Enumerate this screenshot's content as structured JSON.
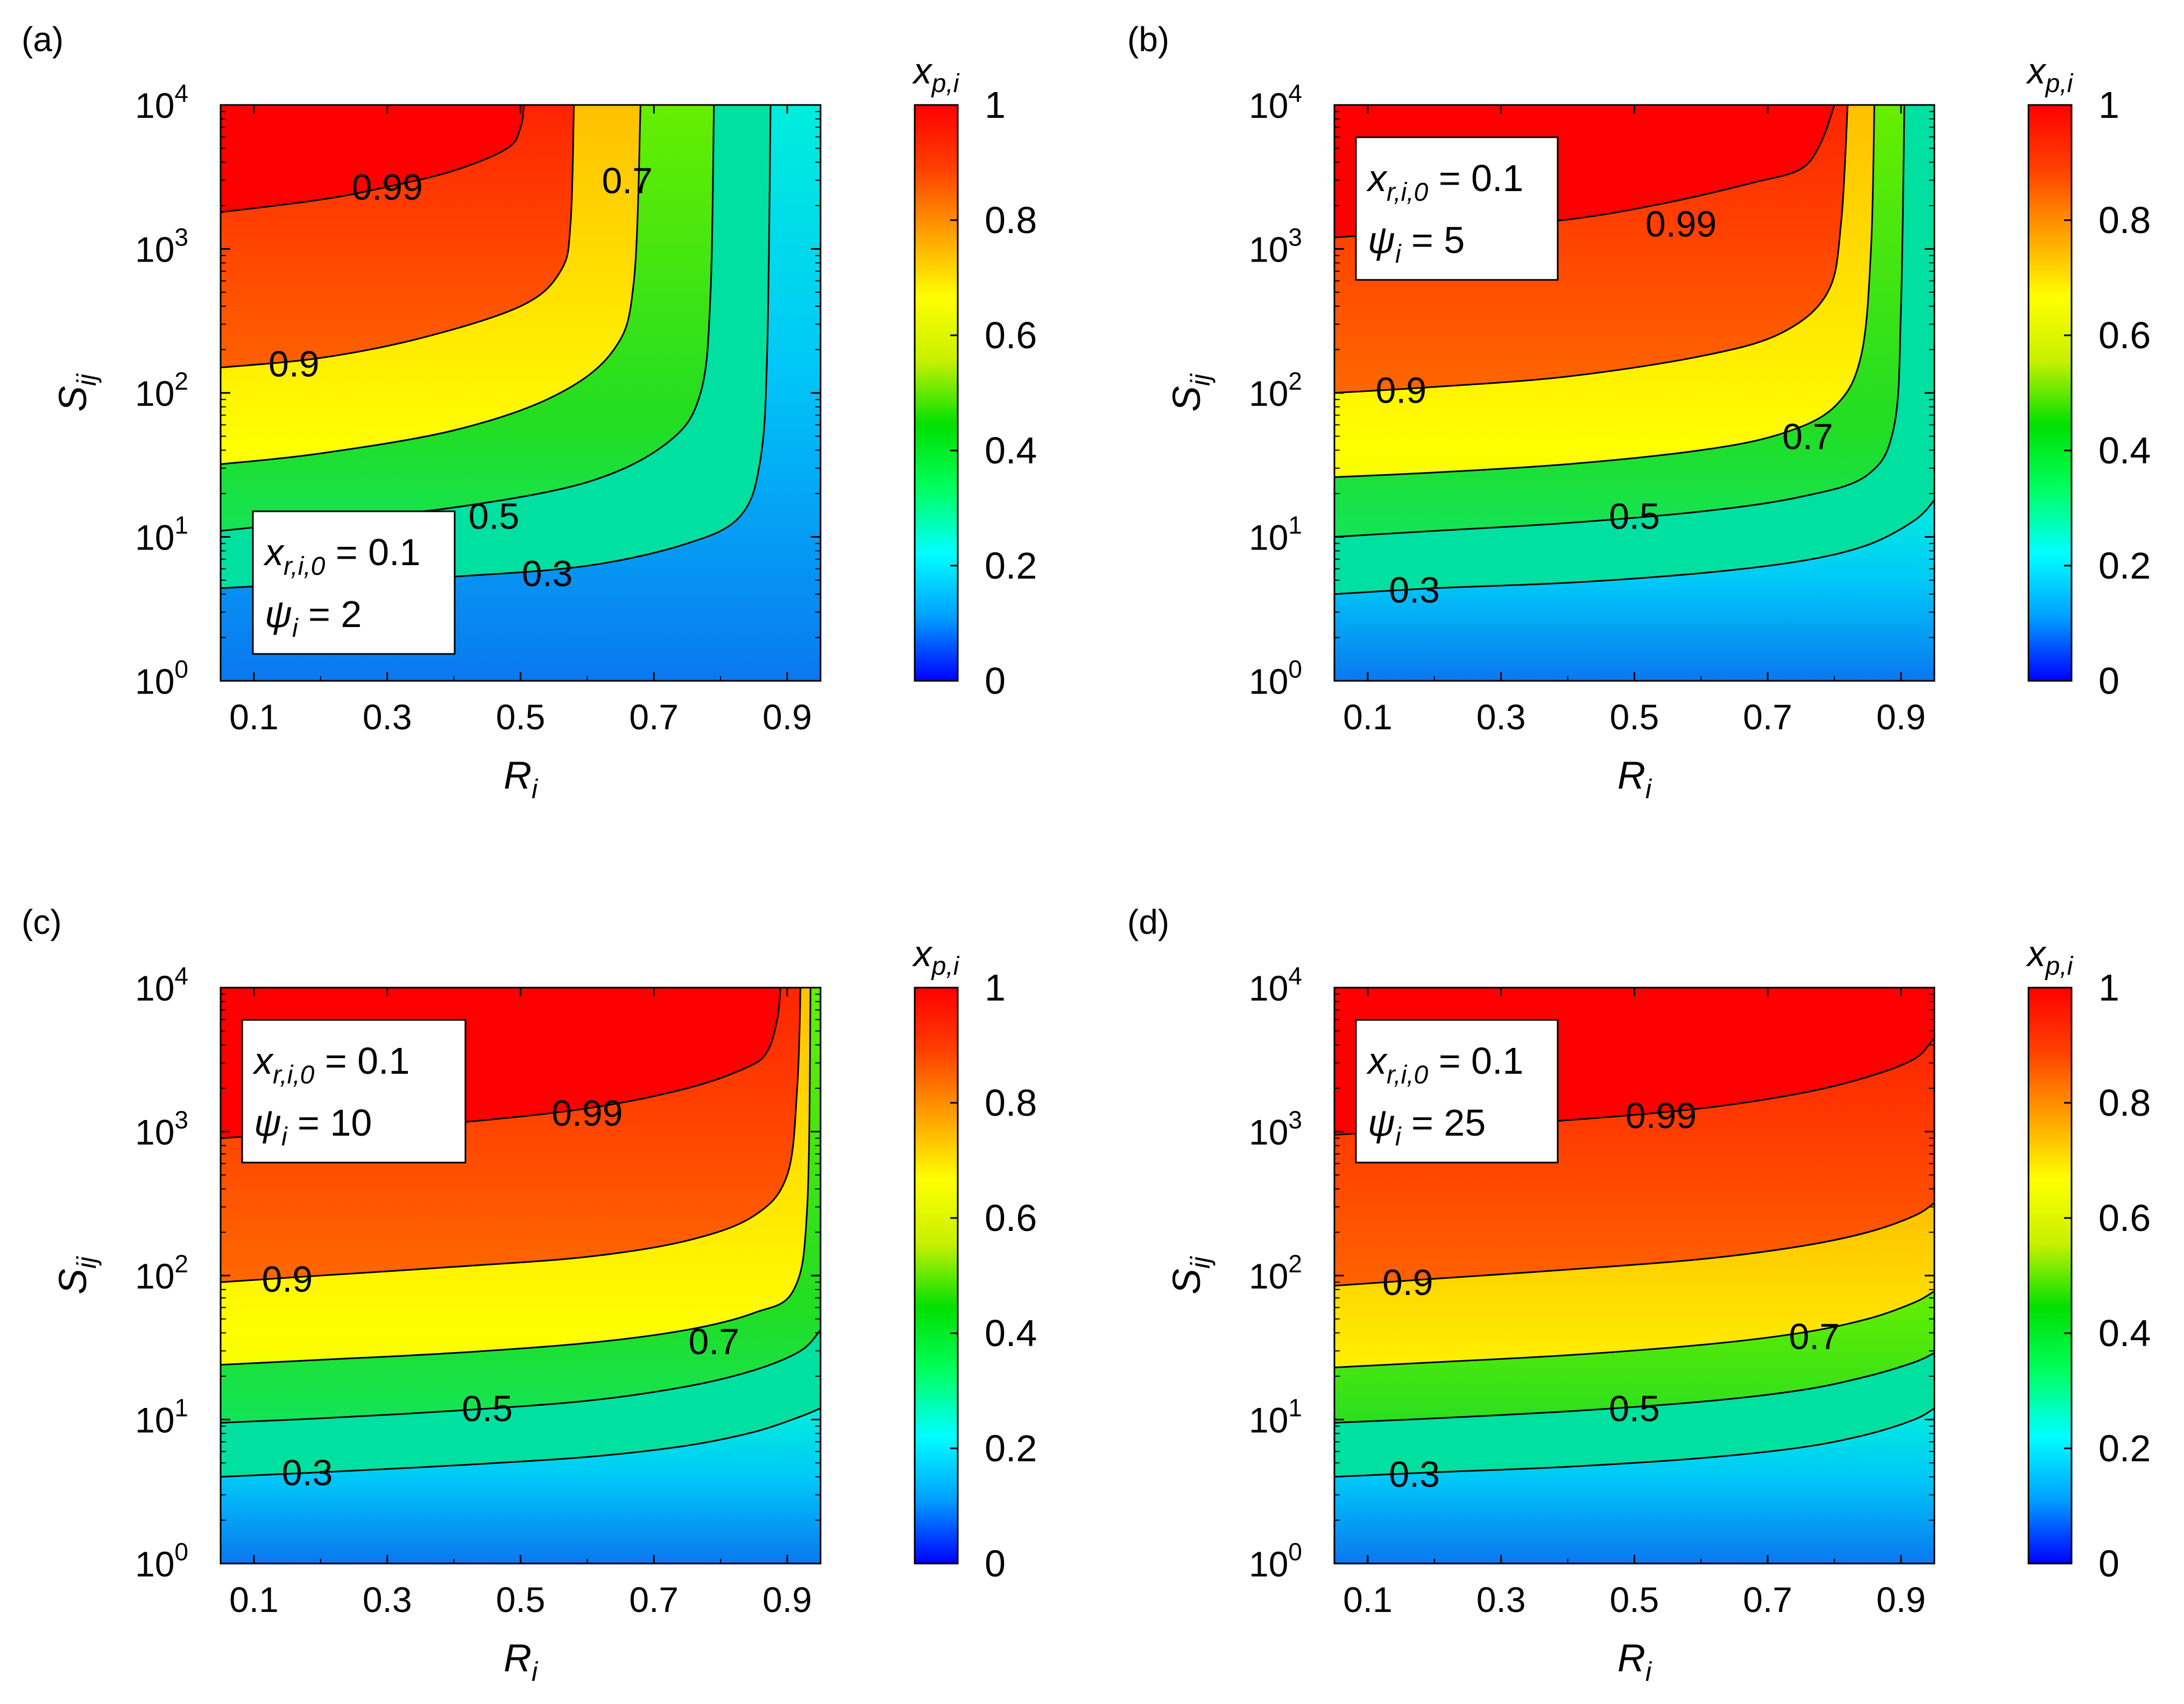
{
  "figure": {
    "background": "#ffffff"
  },
  "colorbar": {
    "title": "x",
    "title_sub": "p,i",
    "ticks": [
      "0",
      "0.2",
      "0.4",
      "0.6",
      "0.8",
      "1"
    ],
    "tick_values": [
      0,
      0.2,
      0.4,
      0.6,
      0.8,
      1
    ],
    "colormap": [
      "#0000ff",
      "#00a0ff",
      "#00ffff",
      "#00ff60",
      "#00e000",
      "#c8f000",
      "#ffff00",
      "#ffa000",
      "#ff4000",
      "#ff0000"
    ]
  },
  "chart_data": [
    {
      "panel": "(a)",
      "type": "contour",
      "xlabel": "R",
      "xlabel_sub": "i",
      "ylabel": "S",
      "ylabel_sub": "ij",
      "xlim": [
        0.05,
        0.95
      ],
      "xticks": [
        "0.1",
        "0.3",
        "0.5",
        "0.7",
        "0.9"
      ],
      "xtick_values": [
        0.1,
        0.3,
        0.5,
        0.7,
        0.9
      ],
      "ylim": [
        1,
        10000
      ],
      "yscale": "log",
      "ytick_exponents": [
        "0",
        "1",
        "2",
        "3",
        "4"
      ],
      "ytick_base": "10",
      "annotation": {
        "line1_var": "x",
        "line1_sub": "r,i,0",
        "line1_val": " = 0.1",
        "line2_var": "ψ",
        "line2_sub": "i",
        "line2_val": " = 2",
        "position": "bottom-left"
      },
      "contours": [
        {
          "level": 0.99,
          "label": "0.99",
          "label_at": [
            0.3,
            2700
          ],
          "points": [
            [
              0.05,
              1800
            ],
            [
              0.2,
              2200
            ],
            [
              0.3,
              2700
            ],
            [
              0.4,
              3500
            ],
            [
              0.48,
              5000
            ],
            [
              0.5,
              7000
            ],
            [
              0.505,
              10000
            ]
          ]
        },
        {
          "level": 0.9,
          "label": "0.9",
          "label_at": [
            0.16,
            160
          ],
          "points": [
            [
              0.05,
              150
            ],
            [
              0.2,
              175
            ],
            [
              0.35,
              240
            ],
            [
              0.5,
              400
            ],
            [
              0.56,
              700
            ],
            [
              0.575,
              1500
            ],
            [
              0.58,
              10000
            ]
          ]
        },
        {
          "level": 0.7,
          "label": "0.7",
          "label_at": [
            0.66,
            3000
          ],
          "points": [
            [
              0.05,
              32
            ],
            [
              0.2,
              38
            ],
            [
              0.4,
              55
            ],
            [
              0.55,
              95
            ],
            [
              0.64,
              200
            ],
            [
              0.67,
              600
            ],
            [
              0.68,
              10000
            ]
          ]
        },
        {
          "level": 0.5,
          "label": "0.5",
          "label_at": [
            0.46,
            14
          ],
          "points": [
            [
              0.05,
              11
            ],
            [
              0.2,
              13
            ],
            [
              0.4,
              16
            ],
            [
              0.6,
              24
            ],
            [
              0.72,
              45
            ],
            [
              0.77,
              100
            ],
            [
              0.785,
              500
            ],
            [
              0.79,
              10000
            ]
          ]
        },
        {
          "level": 0.3,
          "label": "0.3",
          "label_at": [
            0.54,
            5.6
          ],
          "points": [
            [
              0.05,
              4.4
            ],
            [
              0.2,
              4.8
            ],
            [
              0.4,
              5.3
            ],
            [
              0.6,
              6.3
            ],
            [
              0.75,
              9
            ],
            [
              0.83,
              14
            ],
            [
              0.86,
              35
            ],
            [
              0.87,
              200
            ],
            [
              0.875,
              10000
            ]
          ]
        }
      ]
    },
    {
      "panel": "(b)",
      "type": "contour",
      "xlabel": "R",
      "xlabel_sub": "i",
      "ylabel": "S",
      "ylabel_sub": "ij",
      "xlim": [
        0.05,
        0.95
      ],
      "xticks": [
        "0.1",
        "0.3",
        "0.5",
        "0.7",
        "0.9"
      ],
      "xtick_values": [
        0.1,
        0.3,
        0.5,
        0.7,
        0.9
      ],
      "ylim": [
        1,
        10000
      ],
      "yscale": "log",
      "ytick_exponents": [
        "0",
        "1",
        "2",
        "3",
        "4"
      ],
      "ytick_base": "10",
      "annotation": {
        "line1_var": "x",
        "line1_sub": "r,i,0",
        "line1_val": " = 0.1",
        "line2_var": "ψ",
        "line2_sub": "i",
        "line2_val": " = 5",
        "position": "top-left"
      },
      "contours": [
        {
          "level": 0.99,
          "label": "0.99",
          "label_at": [
            0.57,
            1500
          ],
          "points": [
            [
              0.05,
              1200
            ],
            [
              0.2,
              1350
            ],
            [
              0.4,
              1600
            ],
            [
              0.55,
              2100
            ],
            [
              0.68,
              2900
            ],
            [
              0.75,
              3600
            ],
            [
              0.78,
              5500
            ],
            [
              0.8,
              10000
            ]
          ]
        },
        {
          "level": 0.9,
          "label": "0.9",
          "label_at": [
            0.15,
            105
          ],
          "points": [
            [
              0.05,
              100
            ],
            [
              0.2,
              110
            ],
            [
              0.4,
              130
            ],
            [
              0.6,
              180
            ],
            [
              0.72,
              260
            ],
            [
              0.79,
              500
            ],
            [
              0.81,
              1500
            ],
            [
              0.82,
              10000
            ]
          ]
        },
        {
          "level": 0.7,
          "label": "0.7",
          "label_at": [
            0.76,
            50
          ],
          "points": [
            [
              0.05,
              26
            ],
            [
              0.2,
              28
            ],
            [
              0.4,
              32
            ],
            [
              0.6,
              40
            ],
            [
              0.72,
              52
            ],
            [
              0.8,
              80
            ],
            [
              0.84,
              180
            ],
            [
              0.855,
              1000
            ],
            [
              0.86,
              10000
            ]
          ]
        },
        {
          "level": 0.5,
          "label": "0.5",
          "label_at": [
            0.5,
            14
          ],
          "points": [
            [
              0.05,
              10
            ],
            [
              0.2,
              11
            ],
            [
              0.4,
              12.5
            ],
            [
              0.6,
              15
            ],
            [
              0.75,
              19
            ],
            [
              0.85,
              27
            ],
            [
              0.89,
              60
            ],
            [
              0.9,
              400
            ],
            [
              0.905,
              10000
            ]
          ]
        },
        {
          "level": 0.3,
          "label": "0.3",
          "label_at": [
            0.17,
            4.3
          ],
          "points": [
            [
              0.05,
              4
            ],
            [
              0.2,
              4.4
            ],
            [
              0.4,
              4.8
            ],
            [
              0.6,
              5.6
            ],
            [
              0.75,
              6.8
            ],
            [
              0.85,
              8.8
            ],
            [
              0.92,
              13
            ],
            [
              0.95,
              18
            ]
          ]
        }
      ]
    },
    {
      "panel": "(c)",
      "type": "contour",
      "xlabel": "R",
      "xlabel_sub": "i",
      "ylabel": "S",
      "ylabel_sub": "ij",
      "xlim": [
        0.05,
        0.95
      ],
      "xticks": [
        "0.1",
        "0.3",
        "0.5",
        "0.7",
        "0.9"
      ],
      "xtick_values": [
        0.1,
        0.3,
        0.5,
        0.7,
        0.9
      ],
      "ylim": [
        1,
        10000
      ],
      "yscale": "log",
      "ytick_exponents": [
        "0",
        "1",
        "2",
        "3",
        "4"
      ],
      "ytick_base": "10",
      "annotation": {
        "line1_var": "x",
        "line1_sub": "r,i,0",
        "line1_val": " = 0.1",
        "line2_var": "ψ",
        "line2_sub": "i",
        "line2_val": " = 10",
        "position": "top-left"
      },
      "contours": [
        {
          "level": 0.99,
          "label": "0.99",
          "label_at": [
            0.6,
            1350
          ],
          "points": [
            [
              0.05,
              900
            ],
            [
              0.2,
              1000
            ],
            [
              0.4,
              1150
            ],
            [
              0.6,
              1450
            ],
            [
              0.75,
              2000
            ],
            [
              0.84,
              2800
            ],
            [
              0.87,
              3600
            ],
            [
              0.885,
              6000
            ],
            [
              0.89,
              10000
            ]
          ]
        },
        {
          "level": 0.9,
          "label": "0.9",
          "label_at": [
            0.15,
            95
          ],
          "points": [
            [
              0.05,
              90
            ],
            [
              0.2,
              100
            ],
            [
              0.4,
              115
            ],
            [
              0.6,
              135
            ],
            [
              0.75,
              175
            ],
            [
              0.85,
              260
            ],
            [
              0.9,
              500
            ],
            [
              0.915,
              2000
            ],
            [
              0.92,
              10000
            ]
          ]
        },
        {
          "level": 0.7,
          "label": "0.7",
          "label_at": [
            0.79,
            35
          ],
          "points": [
            [
              0.05,
              24
            ],
            [
              0.2,
              26
            ],
            [
              0.4,
              29
            ],
            [
              0.6,
              34
            ],
            [
              0.75,
              42
            ],
            [
              0.85,
              55
            ],
            [
              0.91,
              80
            ],
            [
              0.93,
              300
            ],
            [
              0.935,
              10000
            ]
          ]
        },
        {
          "level": 0.5,
          "label": "0.5",
          "label_at": [
            0.45,
            12
          ],
          "points": [
            [
              0.05,
              9.5
            ],
            [
              0.2,
              10.2
            ],
            [
              0.4,
              11.5
            ],
            [
              0.6,
              13.5
            ],
            [
              0.75,
              17
            ],
            [
              0.85,
              22
            ],
            [
              0.92,
              30
            ],
            [
              0.95,
              42
            ]
          ]
        },
        {
          "level": 0.3,
          "label": "0.3",
          "label_at": [
            0.18,
            4.3
          ],
          "points": [
            [
              0.05,
              4
            ],
            [
              0.2,
              4.3
            ],
            [
              0.4,
              4.8
            ],
            [
              0.6,
              5.5
            ],
            [
              0.75,
              6.6
            ],
            [
              0.85,
              8.2
            ],
            [
              0.92,
              10.5
            ],
            [
              0.95,
              12
            ]
          ]
        }
      ]
    },
    {
      "panel": "(d)",
      "type": "contour",
      "xlabel": "R",
      "xlabel_sub": "i",
      "ylabel": "S",
      "ylabel_sub": "ij",
      "xlim": [
        0.05,
        0.95
      ],
      "xticks": [
        "0.1",
        "0.3",
        "0.5",
        "0.7",
        "0.9"
      ],
      "xtick_values": [
        0.1,
        0.3,
        0.5,
        0.7,
        0.9
      ],
      "ylim": [
        1,
        10000
      ],
      "yscale": "log",
      "ytick_exponents": [
        "0",
        "1",
        "2",
        "3",
        "4"
      ],
      "ytick_base": "10",
      "annotation": {
        "line1_var": "x",
        "line1_sub": "r,i,0",
        "line1_val": " = 0.1",
        "line2_var": "ψ",
        "line2_sub": "i",
        "line2_val": " = 25",
        "position": "top-left"
      },
      "contours": [
        {
          "level": 0.99,
          "label": "0.99",
          "label_at": [
            0.54,
            1300
          ],
          "points": [
            [
              0.05,
              950
            ],
            [
              0.2,
              1050
            ],
            [
              0.4,
              1200
            ],
            [
              0.6,
              1450
            ],
            [
              0.75,
              1850
            ],
            [
              0.85,
              2400
            ],
            [
              0.92,
              3200
            ],
            [
              0.95,
              4500
            ]
          ]
        },
        {
          "level": 0.9,
          "label": "0.9",
          "label_at": [
            0.16,
            90
          ],
          "points": [
            [
              0.05,
              85
            ],
            [
              0.2,
              95
            ],
            [
              0.4,
              110
            ],
            [
              0.6,
              130
            ],
            [
              0.75,
              160
            ],
            [
              0.85,
              200
            ],
            [
              0.92,
              260
            ],
            [
              0.95,
              320
            ]
          ]
        },
        {
          "level": 0.7,
          "label": "0.7",
          "label_at": [
            0.77,
            38
          ],
          "points": [
            [
              0.05,
              23
            ],
            [
              0.2,
              25
            ],
            [
              0.4,
              28
            ],
            [
              0.6,
              33
            ],
            [
              0.75,
              40
            ],
            [
              0.85,
              50
            ],
            [
              0.92,
              65
            ],
            [
              0.95,
              78
            ]
          ]
        },
        {
          "level": 0.5,
          "label": "0.5",
          "label_at": [
            0.5,
            12
          ],
          "points": [
            [
              0.05,
              9.5
            ],
            [
              0.2,
              10.2
            ],
            [
              0.4,
              11.4
            ],
            [
              0.6,
              13.3
            ],
            [
              0.75,
              16
            ],
            [
              0.85,
              20
            ],
            [
              0.92,
              25
            ],
            [
              0.95,
              29
            ]
          ]
        },
        {
          "level": 0.3,
          "label": "0.3",
          "label_at": [
            0.17,
            4.2
          ],
          "points": [
            [
              0.05,
              4
            ],
            [
              0.2,
              4.3
            ],
            [
              0.4,
              4.7
            ],
            [
              0.6,
              5.4
            ],
            [
              0.75,
              6.4
            ],
            [
              0.85,
              7.9
            ],
            [
              0.92,
              10
            ],
            [
              0.95,
              12
            ]
          ]
        }
      ]
    }
  ]
}
